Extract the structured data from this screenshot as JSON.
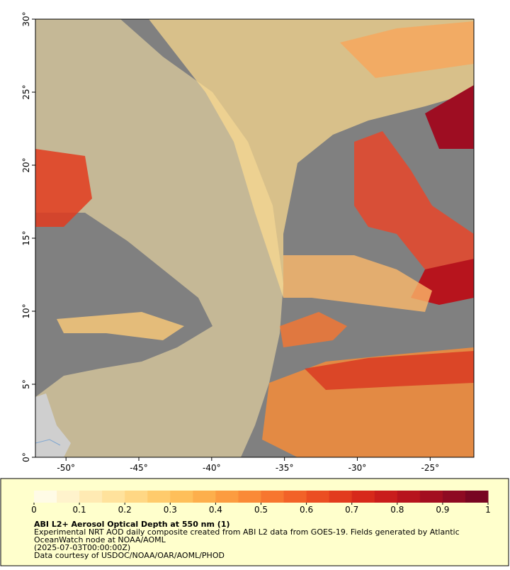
{
  "map": {
    "xlim": [
      -52.1,
      -22
    ],
    "ylim": [
      0,
      30
    ],
    "xticks": [
      {
        "value": -50,
        "label": "-50°"
      },
      {
        "value": -45,
        "label": "-45°"
      },
      {
        "value": -40,
        "label": "-40°"
      },
      {
        "value": -35,
        "label": "-35°"
      },
      {
        "value": -30,
        "label": "-30°"
      },
      {
        "value": -25,
        "label": "-25°"
      }
    ],
    "yticks": [
      {
        "value": 0,
        "label": "0°"
      },
      {
        "value": 5,
        "label": "5°"
      },
      {
        "value": 10,
        "label": "10°"
      },
      {
        "value": 15,
        "label": "15°"
      },
      {
        "value": 20,
        "label": "20°"
      },
      {
        "value": 25,
        "label": "25°"
      },
      {
        "value": 30,
        "label": "30°"
      }
    ]
  },
  "colorbar": {
    "range": [
      0,
      1
    ],
    "ticks": [
      0,
      0.1,
      0.2,
      0.3,
      0.4,
      0.5,
      0.6,
      0.7,
      0.8,
      0.9,
      1
    ],
    "colors": [
      "#fffbe6",
      "#fff3cc",
      "#ffeab3",
      "#ffe29c",
      "#ffd784",
      "#ffcb6c",
      "#febf5a",
      "#fdaf4c",
      "#fc9c40",
      "#fa8a37",
      "#f7762f",
      "#f26228",
      "#eb4e22",
      "#e23b1e",
      "#d7291b",
      "#c91d1c",
      "#b7141d",
      "#a30e20",
      "#8e0a22",
      "#780622"
    ]
  },
  "caption": {
    "title": "ABI L2+ Aerosol Optical Depth at 550 nm (1)",
    "lines": [
      "Experimental NRT AOD daily composite created from ABI L2 data from GOES-19. Fields generated by Atlantic",
      "OceanWatch node at NOAA/AOML",
      "(2025-07-03T00:00:00Z)",
      "Data courtesy of USDOC/NOAA/OAR/AOML/PHOD"
    ]
  }
}
